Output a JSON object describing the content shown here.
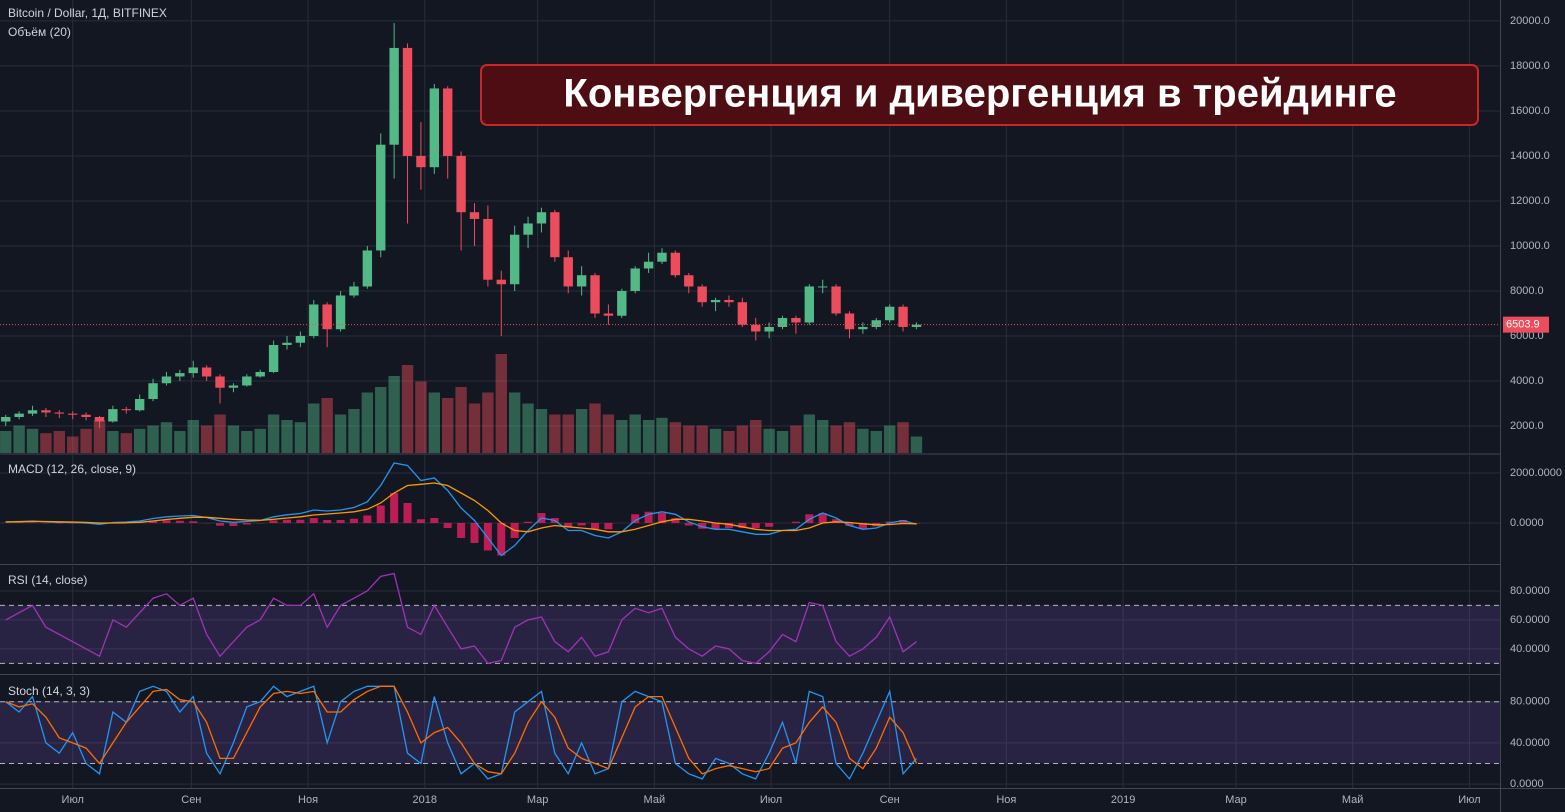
{
  "chart_data": [
    {
      "type": "candlestick",
      "title": "Bitcoin / Dollar, 1Д, BITFINEX",
      "subtitle": "Объём (20)",
      "annotation": "Конвергенция и дивергенция в трейдинге",
      "x": [
        -35,
        -28,
        -21,
        -14,
        -7,
        0,
        7,
        14,
        21,
        28,
        35,
        42,
        49,
        56,
        63,
        70,
        77,
        84,
        91,
        98,
        105,
        112,
        119,
        126,
        133,
        140,
        147,
        154,
        161,
        168,
        175,
        182,
        189,
        196,
        203,
        210,
        217,
        224,
        231,
        238,
        245,
        252,
        259,
        266,
        273,
        280,
        287,
        294,
        301,
        308,
        315,
        322,
        329,
        336,
        343,
        350,
        357,
        364,
        371,
        378,
        385,
        392,
        399,
        406,
        413,
        420,
        427,
        434,
        441
      ],
      "open": [
        2200,
        2400,
        2550,
        2700,
        2600,
        2550,
        2500,
        2400,
        2200,
        2750,
        2700,
        3200,
        3900,
        4200,
        4350,
        4600,
        4200,
        3700,
        3800,
        4200,
        4400,
        5600,
        5700,
        6000,
        7400,
        6300,
        7800,
        8200,
        9800,
        14500,
        18800,
        14000,
        13500,
        17000,
        14000,
        11500,
        11200,
        8500,
        8300,
        10500,
        11000,
        11500,
        9500,
        8200,
        8700,
        7000,
        6900,
        8000,
        9000,
        9300,
        9700,
        8700,
        8200,
        7500,
        7600,
        7500,
        6500,
        6200,
        6400,
        6800,
        6600,
        8200,
        8200,
        7000,
        6300,
        6400,
        6700,
        7300,
        6400
      ],
      "high": [
        2500,
        2650,
        2900,
        2800,
        2700,
        2650,
        2600,
        2450,
        2900,
        2850,
        3400,
        4100,
        4400,
        4500,
        4900,
        4700,
        4300,
        3900,
        4300,
        4500,
        5800,
        6000,
        6200,
        7600,
        7500,
        8000,
        8400,
        10000,
        15000,
        19900,
        19000,
        15500,
        17200,
        17100,
        14200,
        11900,
        11800,
        8900,
        10900,
        11300,
        11700,
        11600,
        9800,
        9100,
        8800,
        7400,
        8100,
        9100,
        9700,
        9900,
        9800,
        8800,
        8300,
        7700,
        7800,
        7700,
        6800,
        6600,
        6900,
        6900,
        8300,
        8500,
        8300,
        7100,
        6600,
        6800,
        7400,
        7400,
        6600
      ],
      "low": [
        2000,
        2300,
        2450,
        2400,
        2350,
        2300,
        2250,
        1900,
        2150,
        2550,
        2650,
        3100,
        3800,
        4000,
        4150,
        4000,
        3000,
        3500,
        3750,
        4150,
        4350,
        5400,
        5500,
        5900,
        5500,
        6200,
        7700,
        8100,
        9500,
        13000,
        11000,
        12500,
        13200,
        13000,
        9800,
        10000,
        8200,
        6000,
        8000,
        9900,
        10600,
        9300,
        7900,
        7800,
        6800,
        6500,
        6800,
        7900,
        8800,
        9200,
        8600,
        7900,
        7300,
        7100,
        7300,
        6400,
        5800,
        5900,
        6300,
        6100,
        6500,
        7900,
        6900,
        5900,
        6100,
        6300,
        6600,
        6200,
        6300
      ],
      "close": [
        2400,
        2550,
        2700,
        2600,
        2550,
        2500,
        2400,
        2200,
        2750,
        2700,
        3200,
        3900,
        4200,
        4350,
        4600,
        4200,
        3700,
        3800,
        4200,
        4400,
        5600,
        5700,
        6000,
        7400,
        6300,
        7800,
        8200,
        9800,
        14500,
        18800,
        14000,
        13500,
        17000,
        14000,
        11500,
        11200,
        8500,
        8300,
        10500,
        11000,
        11500,
        9500,
        8200,
        8700,
        7000,
        6900,
        8000,
        9000,
        9300,
        9700,
        8700,
        8200,
        7500,
        7600,
        7500,
        6500,
        6200,
        6400,
        6800,
        6600,
        8200,
        8200,
        7000,
        6300,
        6400,
        6700,
        7300,
        6400,
        6500
      ],
      "volume": [
        20,
        25,
        22,
        18,
        20,
        15,
        22,
        30,
        20,
        18,
        22,
        25,
        28,
        20,
        30,
        25,
        35,
        25,
        20,
        22,
        35,
        30,
        28,
        45,
        50,
        35,
        40,
        55,
        60,
        70,
        80,
        65,
        55,
        50,
        60,
        45,
        55,
        90,
        55,
        45,
        40,
        35,
        35,
        40,
        45,
        35,
        30,
        35,
        30,
        32,
        28,
        25,
        25,
        22,
        20,
        25,
        30,
        22,
        20,
        25,
        35,
        30,
        25,
        28,
        22,
        20,
        25,
        28,
        15
      ],
      "volume_lim": [
        0,
        100
      ],
      "up_color": "#53b987",
      "down_color": "#eb4d5c",
      "last_price": 6503.9,
      "xlim": [
        -38,
        746
      ],
      "xticks": [
        {
          "value": 0,
          "label": "Июл"
        },
        {
          "value": 62,
          "label": "Сен"
        },
        {
          "value": 123,
          "label": "Ноя"
        },
        {
          "value": 184,
          "label": "2018"
        },
        {
          "value": 243,
          "label": "Мар"
        },
        {
          "value": 304,
          "label": "Май"
        },
        {
          "value": 365,
          "label": "Июл"
        },
        {
          "value": 427,
          "label": "Сен"
        },
        {
          "value": 488,
          "label": "Ноя"
        },
        {
          "value": 549,
          "label": "2019"
        },
        {
          "value": 608,
          "label": "Мар"
        },
        {
          "value": 669,
          "label": "Май"
        },
        {
          "value": 730,
          "label": "Июл"
        }
      ],
      "ylim": [
        800,
        20930
      ],
      "yticks": [
        {
          "value": 2000,
          "label": "2000.0"
        },
        {
          "value": 4000,
          "label": "4000.0"
        },
        {
          "value": 6000,
          "label": "6000.0"
        },
        {
          "value": 8000,
          "label": "8000.0"
        },
        {
          "value": 10000,
          "label": "10000.0"
        },
        {
          "value": 12000,
          "label": "12000.0"
        },
        {
          "value": 14000,
          "label": "14000.0"
        },
        {
          "value": 16000,
          "label": "16000.0"
        },
        {
          "value": 18000,
          "label": "18000.0"
        },
        {
          "value": 20000,
          "label": "20000.0"
        }
      ],
      "grid": true
    },
    {
      "type": "macd",
      "title": "MACD (12, 26, close, 9)",
      "x": [
        -35,
        -28,
        -21,
        -14,
        -7,
        0,
        7,
        14,
        21,
        28,
        35,
        42,
        49,
        56,
        63,
        70,
        77,
        84,
        91,
        98,
        105,
        112,
        119,
        126,
        133,
        140,
        147,
        154,
        161,
        168,
        175,
        182,
        189,
        196,
        203,
        210,
        217,
        224,
        231,
        238,
        245,
        252,
        259,
        266,
        273,
        280,
        287,
        294,
        301,
        308,
        315,
        322,
        329,
        336,
        343,
        350,
        357,
        364,
        371,
        378,
        385,
        392,
        399,
        406,
        413,
        420,
        427,
        434,
        441
      ],
      "series": [
        {
          "color": "#2196f3",
          "values": [
            50,
            60,
            80,
            50,
            30,
            20,
            0,
            -50,
            20,
            40,
            80,
            180,
            250,
            280,
            300,
            220,
            80,
            30,
            60,
            100,
            250,
            330,
            380,
            520,
            480,
            520,
            620,
            850,
            1500,
            2400,
            2300,
            1700,
            1800,
            1300,
            600,
            100,
            -600,
            -1300,
            -900,
            -300,
            200,
            100,
            -300,
            -300,
            -500,
            -600,
            -350,
            100,
            350,
            450,
            350,
            50,
            -150,
            -250,
            -250,
            -350,
            -450,
            -450,
            -300,
            -250,
            150,
            400,
            200,
            -100,
            -250,
            -200,
            0,
            100,
            -50
          ]
        },
        {
          "color": "#ff9800",
          "values": [
            40,
            50,
            60,
            60,
            50,
            40,
            25,
            0,
            0,
            10,
            30,
            80,
            140,
            190,
            230,
            230,
            190,
            150,
            120,
            110,
            150,
            200,
            250,
            320,
            360,
            400,
            450,
            550,
            800,
            1200,
            1500,
            1550,
            1600,
            1500,
            1200,
            900,
            500,
            0,
            -300,
            -350,
            -200,
            -100,
            -150,
            -200,
            -250,
            -350,
            -350,
            -250,
            -100,
            50,
            150,
            150,
            80,
            0,
            -50,
            -150,
            -250,
            -300,
            -300,
            -300,
            -200,
            0,
            50,
            20,
            -30,
            -70,
            -60,
            -20,
            -30
          ]
        }
      ],
      "histogram": {
        "color": "#e91e63",
        "values": [
          10,
          10,
          20,
          -10,
          -20,
          -20,
          -25,
          -50,
          20,
          30,
          50,
          100,
          110,
          90,
          70,
          -10,
          -110,
          -120,
          -60,
          -10,
          100,
          130,
          130,
          200,
          120,
          120,
          170,
          300,
          700,
          1200,
          800,
          150,
          200,
          -200,
          -600,
          -800,
          -1100,
          -1300,
          -600,
          50,
          400,
          200,
          -150,
          -100,
          -250,
          -250,
          0,
          350,
          450,
          400,
          200,
          -100,
          -230,
          -250,
          -200,
          -200,
          -200,
          -150,
          0,
          50,
          350,
          400,
          150,
          -120,
          -220,
          -130,
          60,
          120,
          -20
        ]
      },
      "ylim": [
        -1600,
        2720
      ],
      "yticks": [
        {
          "value": 0,
          "label": "0.0000"
        },
        {
          "value": 2000,
          "label": "2000.0000"
        }
      ]
    },
    {
      "type": "line",
      "title": "RSI (14, close)",
      "x": [
        -35,
        -28,
        -21,
        -14,
        -7,
        0,
        7,
        14,
        21,
        28,
        35,
        42,
        49,
        56,
        63,
        70,
        77,
        84,
        91,
        98,
        105,
        112,
        119,
        126,
        133,
        140,
        147,
        154,
        161,
        168,
        175,
        182,
        189,
        196,
        203,
        210,
        217,
        224,
        231,
        238,
        245,
        252,
        259,
        266,
        273,
        280,
        287,
        294,
        301,
        308,
        315,
        322,
        329,
        336,
        343,
        350,
        357,
        364,
        371,
        378,
        385,
        392,
        399,
        406,
        413,
        420,
        427,
        434,
        441
      ],
      "series": [
        {
          "color": "#a033b8",
          "values": [
            60,
            65,
            70,
            55,
            50,
            45,
            40,
            35,
            60,
            55,
            65,
            75,
            78,
            70,
            75,
            50,
            35,
            45,
            55,
            60,
            75,
            70,
            70,
            78,
            55,
            70,
            75,
            80,
            90,
            92,
            55,
            50,
            70,
            55,
            40,
            42,
            30,
            32,
            55,
            60,
            62,
            45,
            38,
            48,
            35,
            38,
            60,
            68,
            65,
            68,
            48,
            40,
            35,
            42,
            40,
            32,
            30,
            38,
            50,
            45,
            72,
            70,
            45,
            35,
            40,
            48,
            62,
            38,
            45
          ]
        }
      ],
      "levels": [
        30,
        70
      ],
      "ylim": [
        23.4,
        97.2
      ],
      "yticks": [
        {
          "value": 40,
          "label": "40.0000"
        },
        {
          "value": 60,
          "label": "60.0000"
        },
        {
          "value": 80,
          "label": "80.0000"
        }
      ]
    },
    {
      "type": "line",
      "title": "Stoch (14, 3, 3)",
      "x": [
        -35,
        -28,
        -21,
        -14,
        -7,
        0,
        7,
        14,
        21,
        28,
        35,
        42,
        49,
        56,
        63,
        70,
        77,
        84,
        91,
        98,
        105,
        112,
        119,
        126,
        133,
        140,
        147,
        154,
        161,
        168,
        175,
        182,
        189,
        196,
        203,
        210,
        217,
        224,
        231,
        238,
        245,
        252,
        259,
        266,
        273,
        280,
        287,
        294,
        301,
        308,
        315,
        322,
        329,
        336,
        343,
        350,
        357,
        364,
        371,
        378,
        385,
        392,
        399,
        406,
        413,
        420,
        427,
        434,
        441
      ],
      "series": [
        {
          "color": "#2196f3",
          "values": [
            80,
            70,
            85,
            40,
            30,
            50,
            20,
            10,
            70,
            60,
            90,
            95,
            90,
            70,
            85,
            30,
            10,
            40,
            75,
            80,
            95,
            85,
            90,
            95,
            40,
            80,
            90,
            95,
            95,
            95,
            30,
            20,
            85,
            40,
            10,
            20,
            5,
            10,
            70,
            80,
            90,
            30,
            10,
            40,
            10,
            15,
            80,
            90,
            85,
            80,
            20,
            10,
            5,
            25,
            20,
            10,
            5,
            30,
            60,
            20,
            90,
            85,
            20,
            5,
            30,
            60,
            90,
            10,
            25
          ]
        },
        {
          "color": "#ff6d00",
          "values": [
            80,
            75,
            78,
            65,
            45,
            40,
            35,
            20,
            40,
            60,
            75,
            90,
            92,
            82,
            80,
            60,
            25,
            25,
            50,
            75,
            88,
            90,
            88,
            90,
            70,
            70,
            82,
            90,
            95,
            95,
            70,
            40,
            50,
            55,
            40,
            20,
            12,
            10,
            30,
            60,
            80,
            65,
            35,
            25,
            20,
            15,
            45,
            75,
            85,
            85,
            55,
            25,
            10,
            15,
            18,
            15,
            12,
            15,
            35,
            40,
            60,
            75,
            60,
            25,
            15,
            35,
            65,
            50,
            20
          ]
        }
      ],
      "levels": [
        20,
        80
      ],
      "ylim": [
        -3.8,
        105
      ],
      "yticks": [
        {
          "value": 0,
          "label": "0.0000"
        },
        {
          "value": 40,
          "label": "40.0000"
        },
        {
          "value": 80,
          "label": "80.0000"
        }
      ]
    }
  ]
}
